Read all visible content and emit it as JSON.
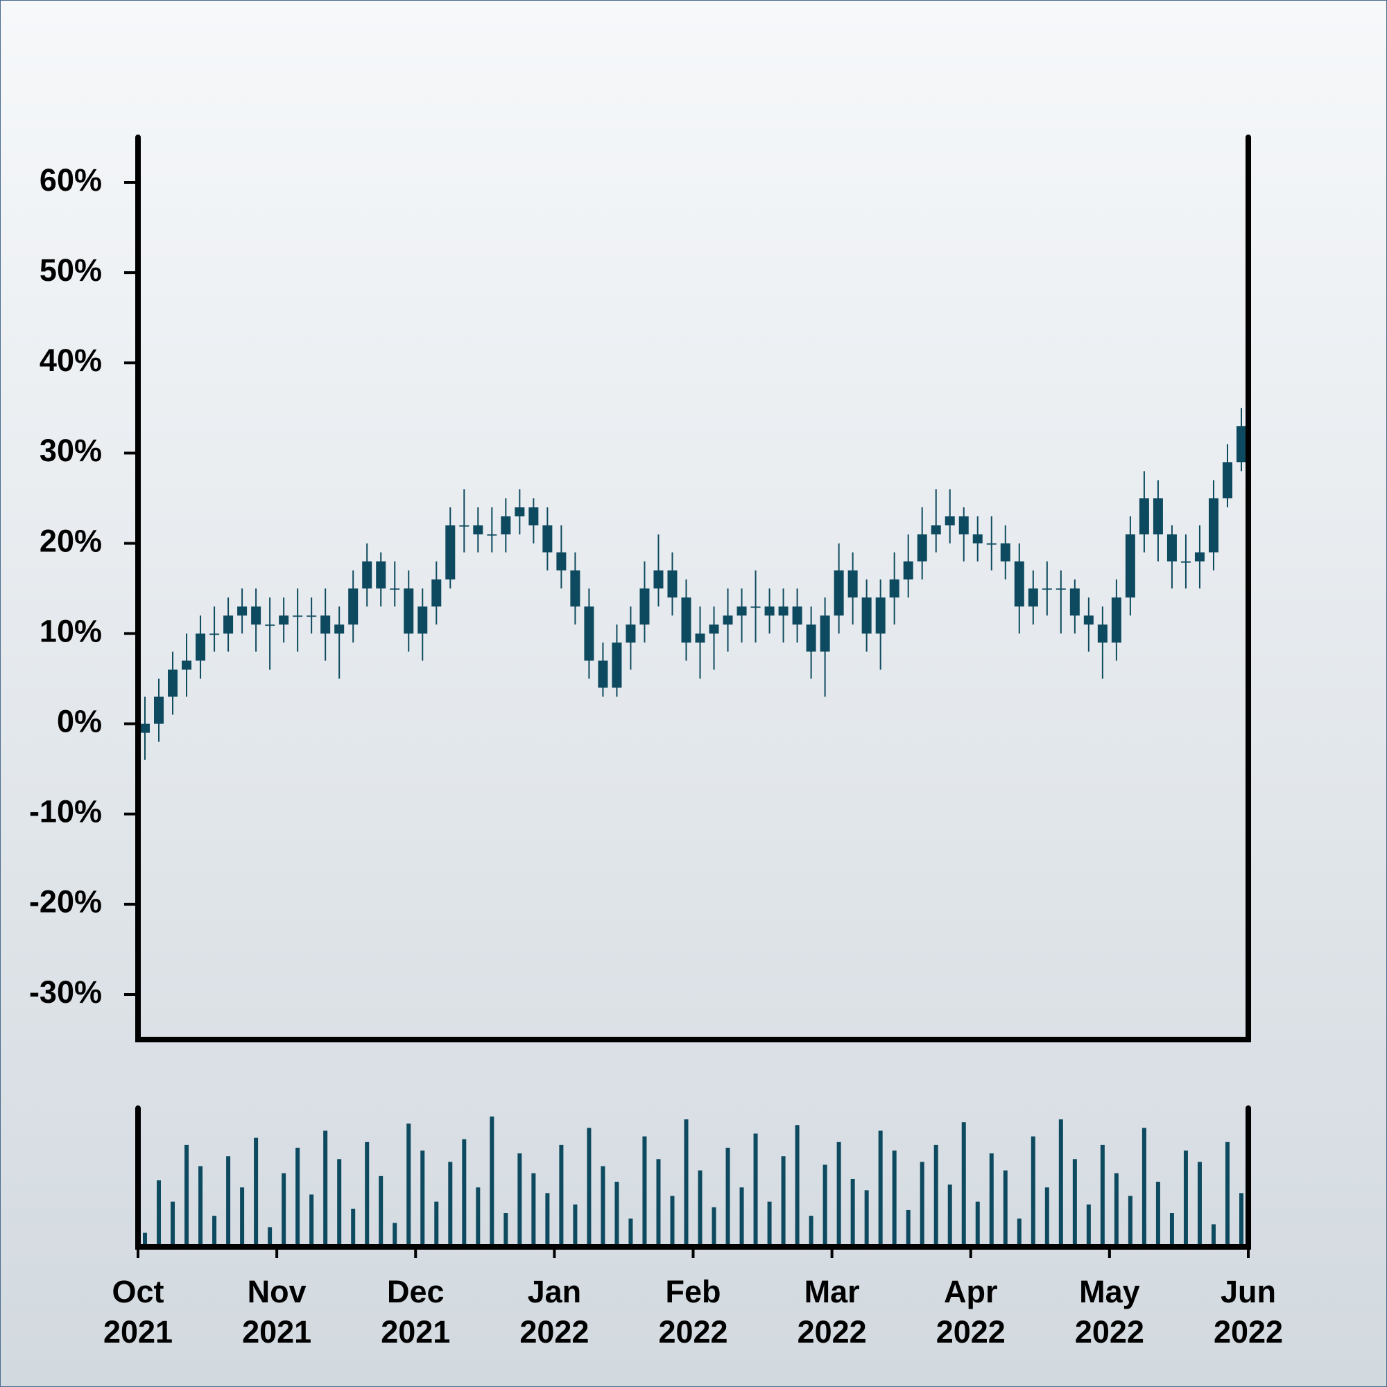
{
  "chart_data": {
    "type": "candlestick",
    "color": "#0e4a5f",
    "xlim": [
      "2021-10",
      "2022-06"
    ],
    "xticks": [
      {
        "value": "2021-10",
        "label": "Oct 2021"
      },
      {
        "value": "2021-11",
        "label": "Nov 2021"
      },
      {
        "value": "2021-12",
        "label": "Dec 2021"
      },
      {
        "value": "2022-01",
        "label": "Jan 2022"
      },
      {
        "value": "2022-02",
        "label": "Feb 2022"
      },
      {
        "value": "2022-03",
        "label": "Mar 2022"
      },
      {
        "value": "2022-04",
        "label": "Apr 2022"
      },
      {
        "value": "2022-05",
        "label": "May 2022"
      },
      {
        "value": "2022-06",
        "label": "Jun 2022"
      }
    ],
    "ylim": [
      -35,
      65
    ],
    "yticks": [
      {
        "value": -30,
        "label": "-30%"
      },
      {
        "value": -20,
        "label": "-20%"
      },
      {
        "value": -10,
        "label": "-10%"
      },
      {
        "value": 0,
        "label": "0%"
      },
      {
        "value": 10,
        "label": "10%"
      },
      {
        "value": 20,
        "label": "20%"
      },
      {
        "value": 30,
        "label": "30%"
      },
      {
        "value": 40,
        "label": "40%"
      },
      {
        "value": 50,
        "label": "50%"
      },
      {
        "value": 60,
        "label": "60%"
      }
    ],
    "open": [
      -1,
      0,
      3,
      6,
      7,
      10,
      10,
      12,
      13,
      11,
      11,
      12,
      12,
      12,
      10,
      11,
      15,
      18,
      15,
      15,
      10,
      13,
      16,
      22,
      22,
      21,
      21,
      23,
      24,
      22,
      19,
      17,
      13,
      7,
      4,
      9,
      11,
      15,
      17,
      14,
      9,
      10,
      11,
      12,
      13,
      13,
      12,
      13,
      11,
      8,
      12,
      17,
      14,
      10,
      14,
      16,
      18,
      21,
      22,
      23,
      21,
      20,
      20,
      18,
      13,
      15,
      15,
      15,
      12,
      11,
      9,
      14,
      21,
      25,
      21,
      18,
      18,
      19,
      25,
      29
    ],
    "high": [
      3,
      5,
      8,
      10,
      12,
      13,
      14,
      15,
      15,
      14,
      14,
      15,
      14,
      15,
      13,
      17,
      20,
      19,
      18,
      17,
      15,
      18,
      24,
      26,
      24,
      24,
      25,
      26,
      25,
      24,
      22,
      19,
      15,
      9,
      11,
      13,
      18,
      21,
      19,
      16,
      13,
      13,
      15,
      15,
      17,
      15,
      15,
      15,
      13,
      14,
      20,
      19,
      16,
      16,
      19,
      21,
      24,
      26,
      26,
      24,
      23,
      23,
      22,
      20,
      17,
      18,
      17,
      16,
      14,
      13,
      16,
      23,
      28,
      27,
      22,
      21,
      22,
      27,
      31,
      35
    ],
    "low": [
      -4,
      -2,
      1,
      3,
      5,
      8,
      8,
      10,
      8,
      6,
      9,
      8,
      10,
      7,
      5,
      9,
      13,
      13,
      13,
      8,
      7,
      11,
      15,
      19,
      19,
      19,
      19,
      21,
      20,
      17,
      15,
      11,
      5,
      3,
      3,
      6,
      9,
      13,
      12,
      7,
      5,
      6,
      8,
      9,
      9,
      10,
      9,
      9,
      5,
      3,
      10,
      11,
      8,
      6,
      11,
      14,
      16,
      19,
      20,
      18,
      18,
      17,
      16,
      10,
      11,
      12,
      10,
      10,
      8,
      5,
      7,
      12,
      19,
      18,
      15,
      15,
      15,
      17,
      24,
      28
    ],
    "close": [
      0,
      3,
      6,
      7,
      10,
      10,
      12,
      13,
      11,
      11,
      12,
      12,
      12,
      10,
      11,
      15,
      18,
      15,
      15,
      10,
      13,
      16,
      22,
      22,
      21,
      21,
      23,
      24,
      22,
      19,
      17,
      13,
      7,
      4,
      9,
      11,
      15,
      17,
      14,
      9,
      10,
      11,
      12,
      13,
      13,
      12,
      13,
      11,
      8,
      12,
      17,
      14,
      10,
      14,
      16,
      18,
      21,
      22,
      23,
      21,
      20,
      20,
      18,
      13,
      15,
      15,
      15,
      12,
      11,
      9,
      14,
      21,
      25,
      21,
      18,
      18,
      19,
      25,
      29,
      33
    ],
    "volume": [
      8,
      45,
      30,
      70,
      55,
      20,
      62,
      40,
      75,
      12,
      50,
      68,
      35,
      80,
      60,
      25,
      72,
      48,
      15,
      85,
      66,
      30,
      58,
      74,
      40,
      90,
      22,
      64,
      50,
      36,
      70,
      28,
      82,
      55,
      44,
      18,
      76,
      60,
      34,
      88,
      52,
      26,
      68,
      40,
      78,
      30,
      62,
      84,
      20,
      56,
      72,
      46,
      38,
      80,
      66,
      24,
      58,
      70,
      42,
      86,
      30,
      64,
      52,
      18,
      76,
      40,
      88,
      60,
      28,
      70,
      50,
      34,
      82,
      44,
      22,
      66,
      58,
      14,
      72,
      36
    ]
  }
}
